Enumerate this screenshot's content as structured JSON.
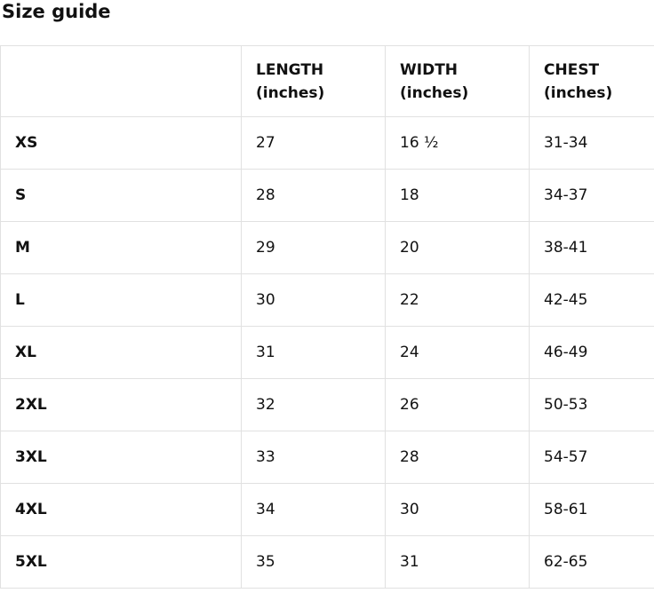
{
  "page": {
    "title": "Size guide"
  },
  "style": {
    "border_color": "#e1e1e1",
    "text_color": "#111111",
    "background_color": "#ffffff"
  },
  "table": {
    "columns": [
      "",
      "LENGTH (inches)",
      "WIDTH (inches)",
      "CHEST (inches)"
    ],
    "rows": [
      {
        "size": "XS",
        "length": "27",
        "width": "16 ½",
        "chest": "31-34"
      },
      {
        "size": "S",
        "length": "28",
        "width": "18",
        "chest": "34-37"
      },
      {
        "size": "M",
        "length": "29",
        "width": "20",
        "chest": "38-41"
      },
      {
        "size": "L",
        "length": "30",
        "width": "22",
        "chest": "42-45"
      },
      {
        "size": "XL",
        "length": "31",
        "width": "24",
        "chest": "46-49"
      },
      {
        "size": "2XL",
        "length": "32",
        "width": "26",
        "chest": "50-53"
      },
      {
        "size": "3XL",
        "length": "33",
        "width": "28",
        "chest": "54-57"
      },
      {
        "size": "4XL",
        "length": "34",
        "width": "30",
        "chest": "58-61"
      },
      {
        "size": "5XL",
        "length": "35",
        "width": "31",
        "chest": "62-65"
      }
    ]
  }
}
